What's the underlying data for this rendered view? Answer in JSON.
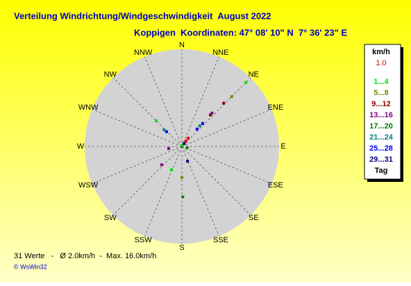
{
  "chart_data": {
    "type": "polar-scatter",
    "title": "Verteilung Windrichtung/Windgeschwindigkeit  August 2022",
    "subtitle": "Koppigen  Koordinaten: 47° 08' 10\" N  7° 36' 23\" E",
    "directions": [
      "N",
      "NNE",
      "NE",
      "ENE",
      "E",
      "ESE",
      "SE",
      "SSE",
      "S",
      "SSW",
      "SW",
      "WSW",
      "W",
      "WNW",
      "NW",
      "NNW"
    ],
    "rlim": [
      0,
      16
    ],
    "legend_title": "km/h",
    "legend_footer": "Tag",
    "series": [
      {
        "name": "1.0",
        "color": "#e00000",
        "theta": [
          37,
          37
        ],
        "values": [
          1.7,
          1.1
        ]
      },
      {
        "name": "1...4",
        "color": "#00e000",
        "theta": [
          45,
          315,
          204,
          0
        ],
        "values": [
          14.9,
          6.0,
          4.2,
          0.2
        ]
      },
      {
        "name": "5...8",
        "color": "#808000",
        "theta": [
          45,
          180
        ],
        "values": [
          11.6,
          5.1
        ]
      },
      {
        "name": "9...12",
        "color": "#800000",
        "theta": [
          44,
          42
        ],
        "values": [
          9.9,
          7.0
        ]
      },
      {
        "name": "13...16",
        "color": "#800080",
        "theta": [
          42,
          261,
          228
        ],
        "values": [
          7.4,
          2.2,
          4.5
        ]
      },
      {
        "name": "17...20",
        "color": "#008000",
        "theta": [
          179,
          104
        ],
        "values": [
          8.3,
          0.9
        ]
      },
      {
        "name": "21...24",
        "color": "#008080",
        "theta": [
          41,
          313
        ],
        "values": [
          4.5,
          4.0
        ]
      },
      {
        "name": "25...28",
        "color": "#0000ff",
        "theta": [
          42,
          41,
          314
        ],
        "values": [
          5.1,
          3.8,
          3.5
        ]
      },
      {
        "name": "29...31",
        "color": "#000080",
        "theta": [
          37,
          159
        ],
        "values": [
          0.6,
          2.6
        ]
      }
    ],
    "stats": "31 Werte   -   Ø 2.0km/h  -  Max. 16.0km/h",
    "copyright": "© WsWin32"
  }
}
